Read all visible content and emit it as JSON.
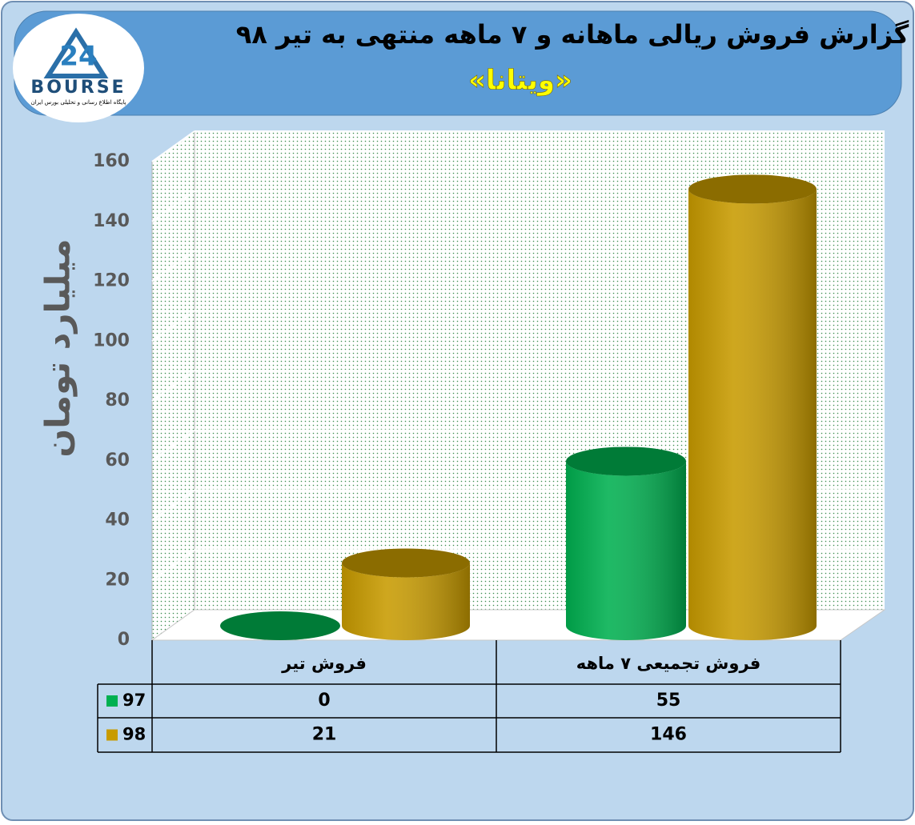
{
  "logo": {
    "mark": "24",
    "name": "BOURSE",
    "tagline": "پایگاه اطلاع رسانی و تحلیلی بورس ایران"
  },
  "chart_data": {
    "type": "bar3d",
    "title": "گزارش فروش ریالی ماهانه و ۷ ماهه منتهی به تیر ۹۸",
    "subtitle": "«ویتانا»",
    "y_label": "میلیارد تومان",
    "categories": [
      "فروش تیر",
      "فروش تجمیعی ۷ ماهه"
    ],
    "series": [
      {
        "name": "97",
        "color": "#00b050",
        "values": [
          0,
          55
        ]
      },
      {
        "name": "98",
        "color": "#c89b00",
        "values": [
          21,
          146
        ]
      }
    ],
    "ylim": [
      0,
      160
    ],
    "yticks": [
      0,
      20,
      40,
      60,
      80,
      100,
      120,
      140,
      160
    ],
    "grid": true,
    "data_table": true
  }
}
